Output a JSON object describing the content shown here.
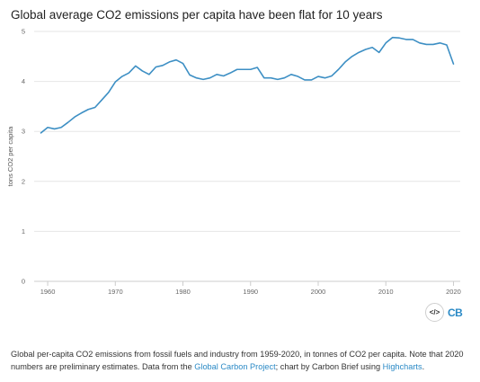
{
  "title": "Global average CO2 emissions per capita have been flat for 10 years",
  "logo": {
    "embed_label": "</>",
    "brand": "CB"
  },
  "caption": {
    "text_before": "Global per-capita CO2 emissions from fossil fuels and industry from 1959-2020, in tonnes of CO2 per capita. Note that 2020 numbers are preliminary estimates. Data from the ",
    "link1": "Global Carbon Project",
    "text_middle": "; chart by Carbon Brief using ",
    "link2": "Highcharts",
    "text_after": "."
  },
  "colors": {
    "line": "#3d8fc4",
    "link": "#2b8ac6",
    "grid": "#e6e6e6"
  },
  "chart_data": {
    "type": "line",
    "ylabel": "tons CO2 per capita",
    "xlabel": "",
    "xlim": [
      1958,
      2021
    ],
    "ylim": [
      0,
      5
    ],
    "x_ticks": [
      1960,
      1970,
      1980,
      1990,
      2000,
      2010,
      2020
    ],
    "y_ticks": [
      0,
      1,
      2,
      3,
      4,
      5
    ],
    "grid": "horizontal",
    "series": [
      {
        "x": [
          1959,
          1960,
          1961,
          1962,
          1963,
          1964,
          1965,
          1966,
          1967,
          1968,
          1969,
          1970,
          1971,
          1972,
          1973,
          1974,
          1975,
          1976,
          1977,
          1978,
          1979,
          1980,
          1981,
          1982,
          1983,
          1984,
          1985,
          1986,
          1987,
          1988,
          1989,
          1990,
          1991,
          1992,
          1993,
          1994,
          1995,
          1996,
          1997,
          1998,
          1999,
          2000,
          2001,
          2002,
          2003,
          2004,
          2005,
          2006,
          2007,
          2008,
          2009,
          2010,
          2011,
          2012,
          2013,
          2014,
          2015,
          2016,
          2017,
          2018,
          2019,
          2020
        ],
        "y": [
          2.97,
          3.08,
          3.05,
          3.08,
          3.18,
          3.29,
          3.37,
          3.44,
          3.48,
          3.63,
          3.78,
          3.99,
          4.1,
          4.17,
          4.31,
          4.21,
          4.14,
          4.29,
          4.32,
          4.39,
          4.43,
          4.36,
          4.13,
          4.07,
          4.04,
          4.07,
          4.14,
          4.11,
          4.17,
          4.24,
          4.24,
          4.24,
          4.28,
          4.07,
          4.07,
          4.04,
          4.07,
          4.14,
          4.1,
          4.03,
          4.03,
          4.1,
          4.07,
          4.11,
          4.24,
          4.39,
          4.5,
          4.58,
          4.64,
          4.68,
          4.58,
          4.77,
          4.88,
          4.87,
          4.84,
          4.84,
          4.77,
          4.74,
          4.74,
          4.77,
          4.73,
          4.35
        ]
      }
    ]
  }
}
